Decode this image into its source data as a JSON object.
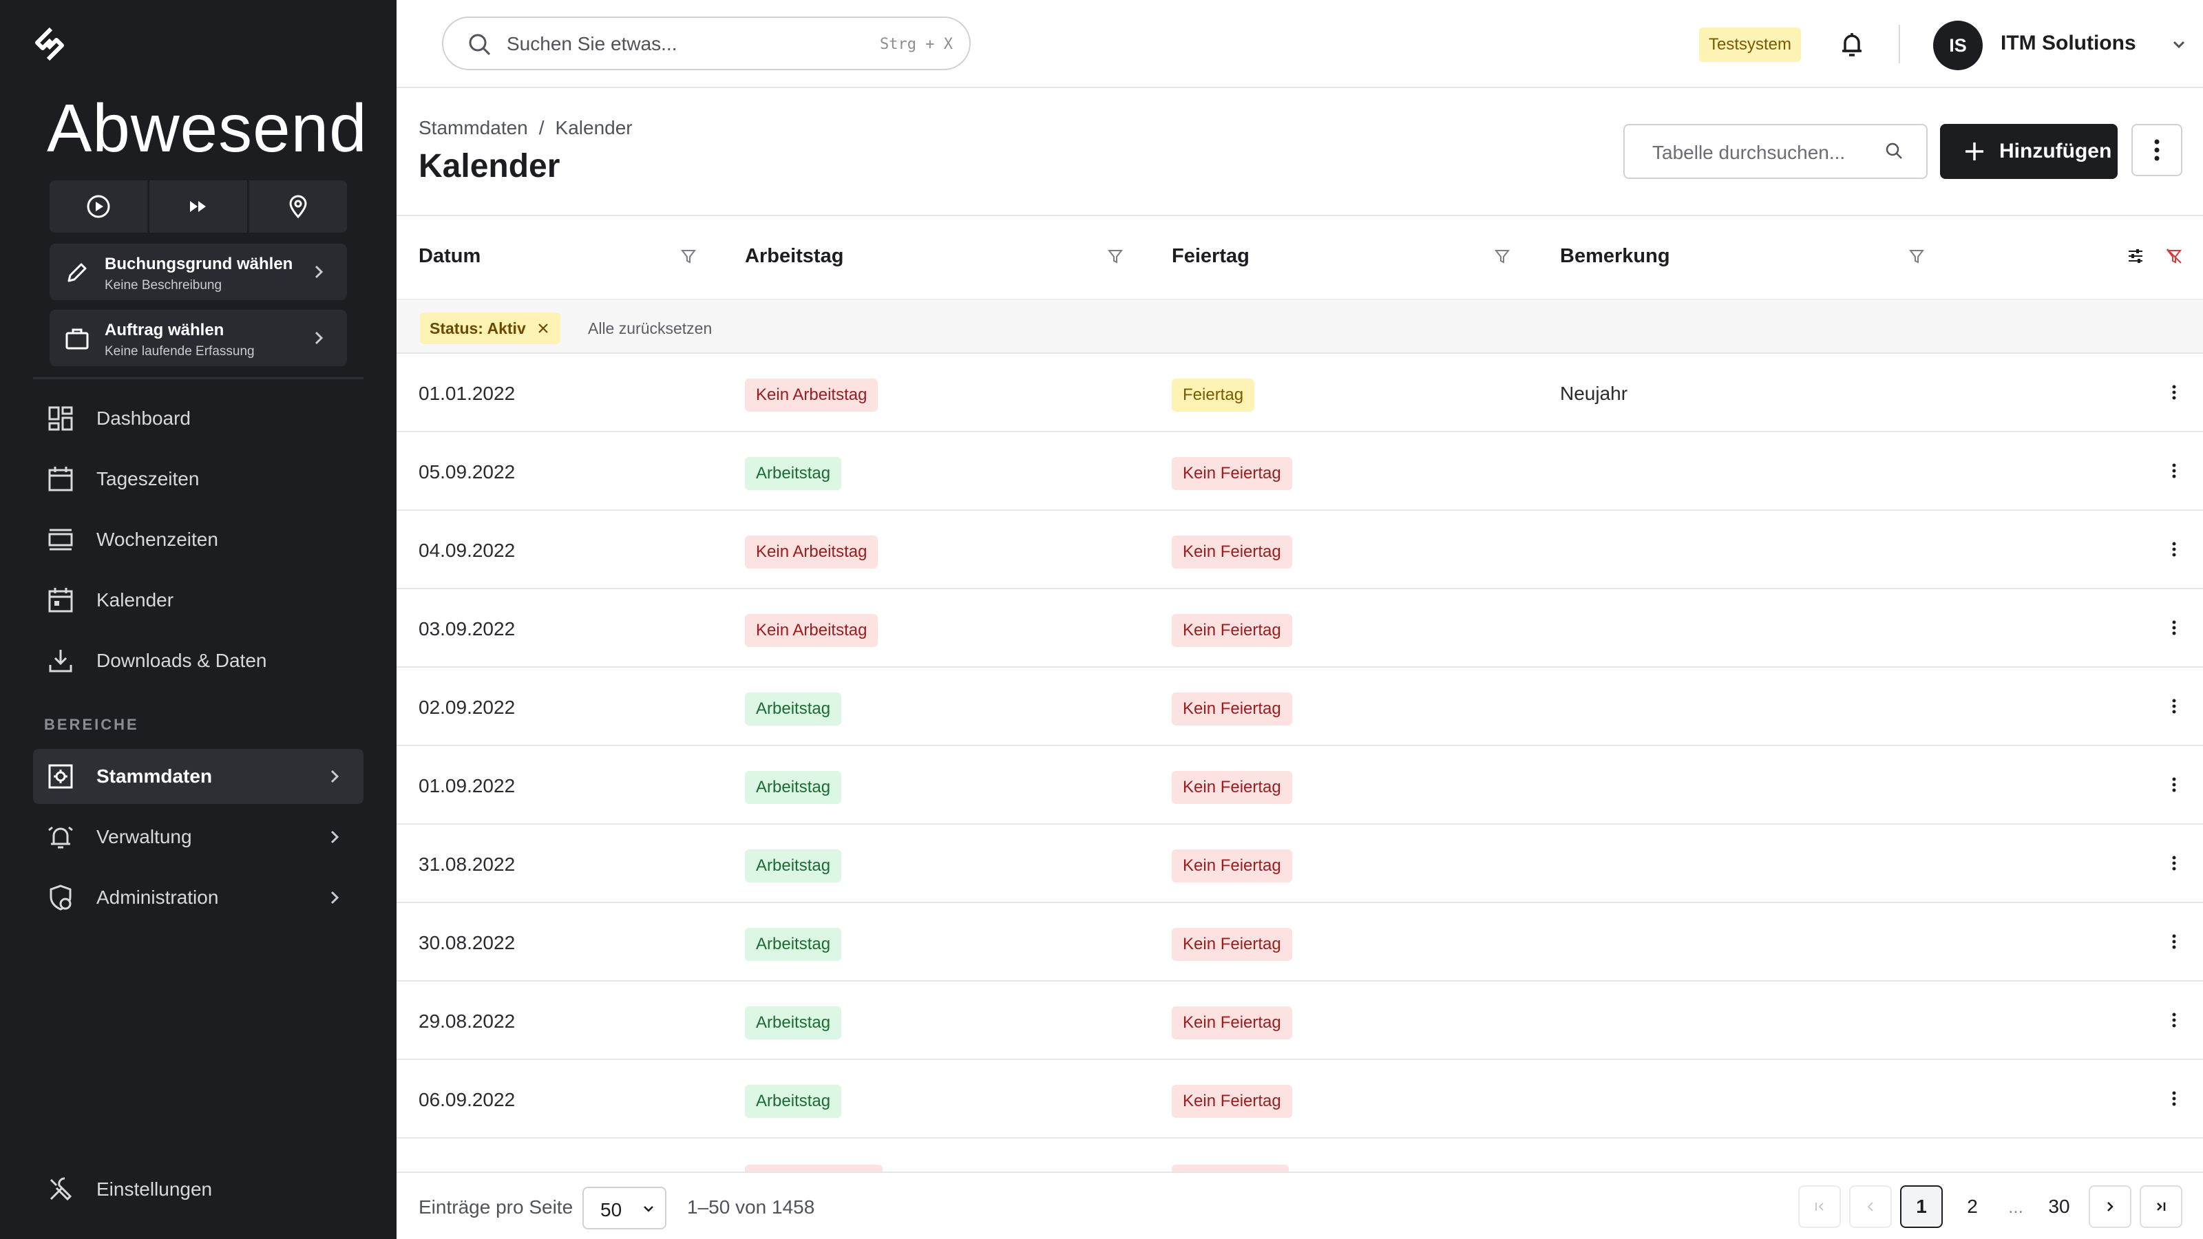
{
  "sidebar": {
    "status_title": "Abwesend",
    "booking": {
      "title": "Buchungsgrund wählen",
      "subtitle": "Keine Beschreibung"
    },
    "order": {
      "title": "Auftrag wählen",
      "subtitle": "Keine laufende Erfassung"
    },
    "nav": [
      {
        "label": "Dashboard",
        "icon": "dashboard-icon"
      },
      {
        "label": "Tageszeiten",
        "icon": "calendar-day-icon"
      },
      {
        "label": "Wochenzeiten",
        "icon": "week-view-icon"
      },
      {
        "label": "Kalender",
        "icon": "calendar-icon"
      },
      {
        "label": "Downloads & Daten",
        "icon": "download-icon"
      }
    ],
    "section_label": "BEREICHE",
    "areas": [
      {
        "label": "Stammdaten",
        "icon": "master-data-icon",
        "active": true
      },
      {
        "label": "Verwaltung",
        "icon": "alarm-bell-icon",
        "active": false
      },
      {
        "label": "Administration",
        "icon": "shield-user-icon",
        "active": false
      }
    ],
    "settings_label": "Einstellungen"
  },
  "header": {
    "search_placeholder": "Suchen Sie etwas...",
    "search_shortcut": "Strg + X",
    "env_badge": "Testsystem",
    "avatar_initials": "IS",
    "org_name": "ITM Solutions"
  },
  "page": {
    "breadcrumb": [
      "Stammdaten",
      "Kalender"
    ],
    "title": "Kalender",
    "table_search_placeholder": "Tabelle durchsuchen...",
    "add_label": "Hinzufügen"
  },
  "table": {
    "columns": [
      "Datum",
      "Arbeitstag",
      "Feiertag",
      "Bemerkung"
    ],
    "filter_chip": "Status: Aktiv",
    "reset_all": "Alle zurücksetzen",
    "rows": [
      {
        "date": "01.01.2022",
        "workday": "Kein Arbeitstag",
        "workday_type": "red",
        "holiday": "Feiertag",
        "holiday_type": "yellow",
        "remark": "Neujahr"
      },
      {
        "date": "05.09.2022",
        "workday": "Arbeitstag",
        "workday_type": "green",
        "holiday": "Kein Feiertag",
        "holiday_type": "red",
        "remark": ""
      },
      {
        "date": "04.09.2022",
        "workday": "Kein Arbeitstag",
        "workday_type": "red",
        "holiday": "Kein Feiertag",
        "holiday_type": "red",
        "remark": ""
      },
      {
        "date": "03.09.2022",
        "workday": "Kein Arbeitstag",
        "workday_type": "red",
        "holiday": "Kein Feiertag",
        "holiday_type": "red",
        "remark": ""
      },
      {
        "date": "02.09.2022",
        "workday": "Arbeitstag",
        "workday_type": "green",
        "holiday": "Kein Feiertag",
        "holiday_type": "red",
        "remark": ""
      },
      {
        "date": "01.09.2022",
        "workday": "Arbeitstag",
        "workday_type": "green",
        "holiday": "Kein Feiertag",
        "holiday_type": "red",
        "remark": ""
      },
      {
        "date": "31.08.2022",
        "workday": "Arbeitstag",
        "workday_type": "green",
        "holiday": "Kein Feiertag",
        "holiday_type": "red",
        "remark": ""
      },
      {
        "date": "30.08.2022",
        "workday": "Arbeitstag",
        "workday_type": "green",
        "holiday": "Kein Feiertag",
        "holiday_type": "red",
        "remark": ""
      },
      {
        "date": "29.08.2022",
        "workday": "Arbeitstag",
        "workday_type": "green",
        "holiday": "Kein Feiertag",
        "holiday_type": "red",
        "remark": ""
      },
      {
        "date": "06.09.2022",
        "workday": "Arbeitstag",
        "workday_type": "green",
        "holiday": "Kein Feiertag",
        "holiday_type": "red",
        "remark": ""
      }
    ]
  },
  "footer": {
    "per_page_label": "Einträge pro Seite",
    "per_page_value": "50",
    "range": "1–50 von 1458",
    "pages": [
      "1",
      "2",
      "...",
      "30"
    ],
    "current_page": "1"
  },
  "colors": {
    "sidebar_bg": "#1c1d21",
    "badge_red_bg": "#fde2e2",
    "badge_green_bg": "#dcf7e3",
    "badge_yellow_bg": "#fdf3b5"
  }
}
